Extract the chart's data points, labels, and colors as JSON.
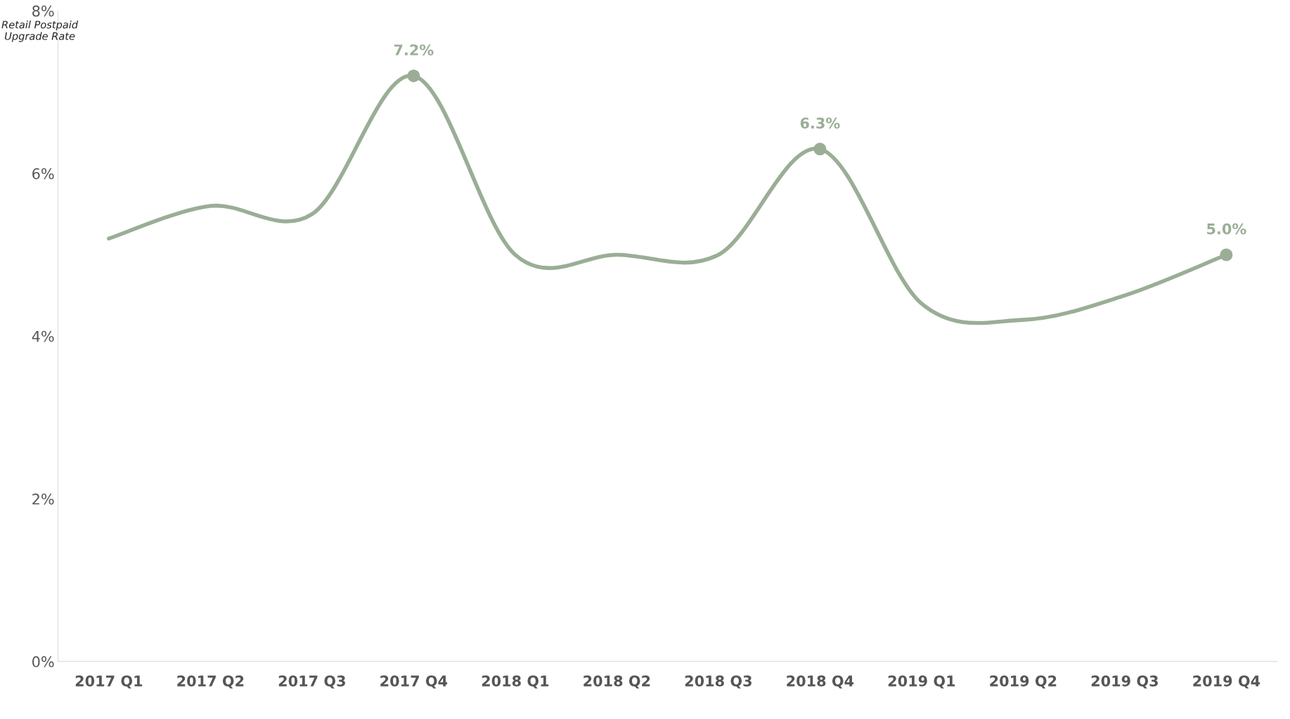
{
  "chart_data": {
    "type": "line",
    "ylabel": "Retail Postpaid\nUpgrade Rate",
    "categories": [
      "2017 Q1",
      "2017 Q2",
      "2017 Q3",
      "2017 Q4",
      "2018 Q1",
      "2018 Q2",
      "2018 Q3",
      "2018 Q4",
      "2019 Q1",
      "2019 Q2",
      "2019 Q3",
      "2019 Q4"
    ],
    "series": [
      {
        "color": "#9aae96",
        "values": [
          5.2,
          5.6,
          5.5,
          7.2,
          5.0,
          5.0,
          5.0,
          6.3,
          4.4,
          4.2,
          4.5,
          5.0
        ],
        "value_labels": [
          null,
          null,
          null,
          "7.2%",
          null,
          null,
          null,
          "6.3%",
          null,
          null,
          null,
          "5.0%"
        ]
      }
    ],
    "ylim": [
      0,
      8
    ],
    "yticks": [
      {
        "value": 0,
        "label": "0%"
      },
      {
        "value": 2,
        "label": "2%"
      },
      {
        "value": 4,
        "label": "4%"
      },
      {
        "value": 6,
        "label": "6%"
      },
      {
        "value": 8,
        "label": "8%"
      }
    ],
    "grid": false,
    "legend": false,
    "line_style": "solid"
  }
}
